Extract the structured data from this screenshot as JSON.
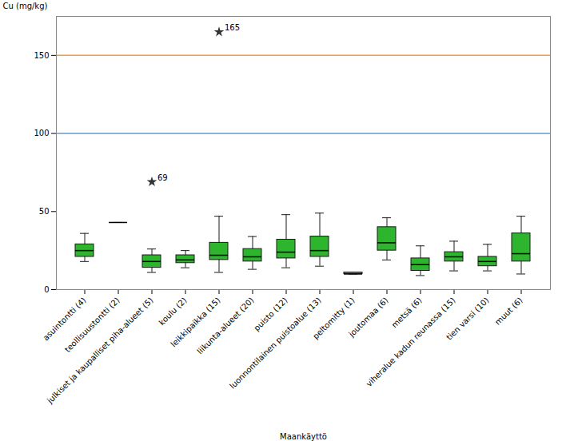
{
  "chart_data": {
    "type": "box",
    "categories": [
      "asuintontti (4)",
      "teollisuustontti (2)",
      "julkiset ja kaupalliset piha-alueet (5)",
      "koulu (2)",
      "leikkipaikka (15)",
      "liikunta-alueet (20)",
      "puisto (12)",
      "luonnontilainen puistoalue (13)",
      "peltomitty (1)",
      "joutomaa (6)",
      "metsä (6)",
      "viheralue kadun reunassa (15)",
      "tien varsi (10)",
      "muut (6)"
    ],
    "boxes": [
      {
        "whislo": 18,
        "q1": 21,
        "med": 25,
        "q3": 29,
        "whishi": 36
      },
      {
        "whislo": 43,
        "q1": 43,
        "med": 43,
        "q3": 43,
        "whishi": 43
      },
      {
        "whislo": 11,
        "q1": 14,
        "med": 18,
        "q3": 22,
        "whishi": 26
      },
      {
        "whislo": 14,
        "q1": 17,
        "med": 19,
        "q3": 22,
        "whishi": 25
      },
      {
        "whislo": 11,
        "q1": 19,
        "med": 22,
        "q3": 30,
        "whishi": 47
      },
      {
        "whislo": 13,
        "q1": 18,
        "med": 21,
        "q3": 26,
        "whishi": 34
      },
      {
        "whislo": 14,
        "q1": 20,
        "med": 24,
        "q3": 32,
        "whishi": 48
      },
      {
        "whislo": 15,
        "q1": 21,
        "med": 25,
        "q3": 34,
        "whishi": 49
      },
      {
        "whislo": 10,
        "q1": 10,
        "med": 10,
        "q3": 11,
        "whishi": 11
      },
      {
        "whislo": 19,
        "q1": 25,
        "med": 30,
        "q3": 40,
        "whishi": 46
      },
      {
        "whislo": 9,
        "q1": 12,
        "med": 16,
        "q3": 20,
        "whishi": 28
      },
      {
        "whislo": 12,
        "q1": 18,
        "med": 21,
        "q3": 24,
        "whishi": 31
      },
      {
        "whislo": 12,
        "q1": 15,
        "med": 18,
        "q3": 21,
        "whishi": 29
      },
      {
        "whislo": 10,
        "q1": 18,
        "med": 23,
        "q3": 36,
        "whishi": 47
      }
    ],
    "fliers": [
      {
        "category": "julkiset ja kaupalliset piha-alueet (5)",
        "value": 69,
        "label": "69"
      },
      {
        "category": "leikkipaikka (15)",
        "value": 165,
        "label": "165"
      }
    ],
    "hlines": [
      {
        "value": 100,
        "color": "#6699cc"
      },
      {
        "value": 150,
        "color": "#f0a030"
      }
    ],
    "xlabel": "Maankäyttö",
    "ylabel": "Cu (mg/kg)",
    "ylim": [
      0,
      175
    ],
    "yticks": [
      0,
      50,
      100,
      150
    ],
    "grid": false,
    "color": "#2db52d"
  }
}
